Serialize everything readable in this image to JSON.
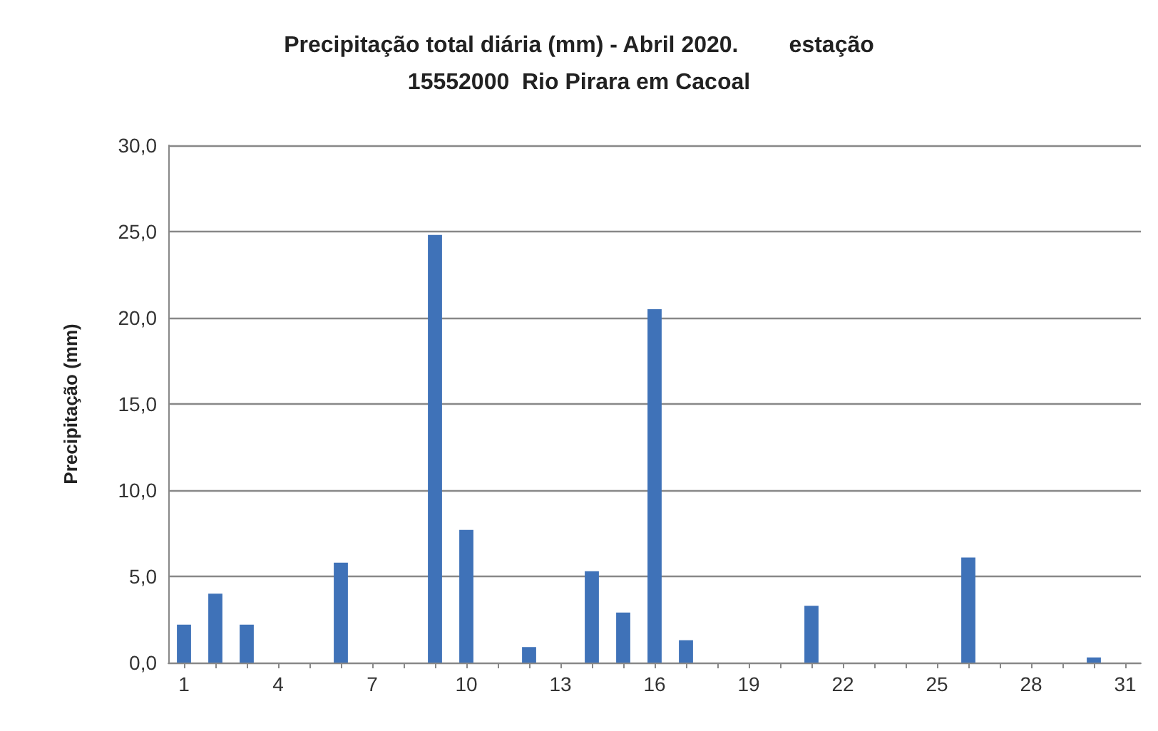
{
  "chart_data": {
    "type": "bar",
    "title": "Precipitação total diária (mm) - Abril 2020.        estação\n15552000  Rio Pirara em Cacoal",
    "ylabel": "Precipitação (mm)",
    "categories": [
      "1",
      null,
      null,
      "4",
      null,
      null,
      "7",
      null,
      null,
      "10",
      null,
      null,
      "13",
      null,
      null,
      "16",
      null,
      null,
      "19",
      null,
      null,
      "22",
      null,
      null,
      "25",
      null,
      null,
      "28",
      null,
      null,
      "31"
    ],
    "values": [
      2.2,
      4.0,
      2.2,
      0,
      0,
      5.8,
      0,
      0,
      24.8,
      7.7,
      0,
      0.9,
      0,
      5.3,
      2.9,
      20.5,
      1.3,
      0,
      0,
      0,
      3.3,
      0,
      0,
      0,
      0,
      6.1,
      0,
      0,
      0,
      0.3,
      0
    ],
    "color": "#3f72b8",
    "ylim": [
      0,
      30
    ],
    "yticks": [
      {
        "value": 0,
        "label": "0,0"
      },
      {
        "value": 5,
        "label": "5,0"
      },
      {
        "value": 10,
        "label": "10,0"
      },
      {
        "value": 15,
        "label": "15,0"
      },
      {
        "value": 20,
        "label": "20,0"
      },
      {
        "value": 25,
        "label": "25,0"
      },
      {
        "value": 30,
        "label": "30,0"
      }
    ],
    "grid": "y"
  }
}
